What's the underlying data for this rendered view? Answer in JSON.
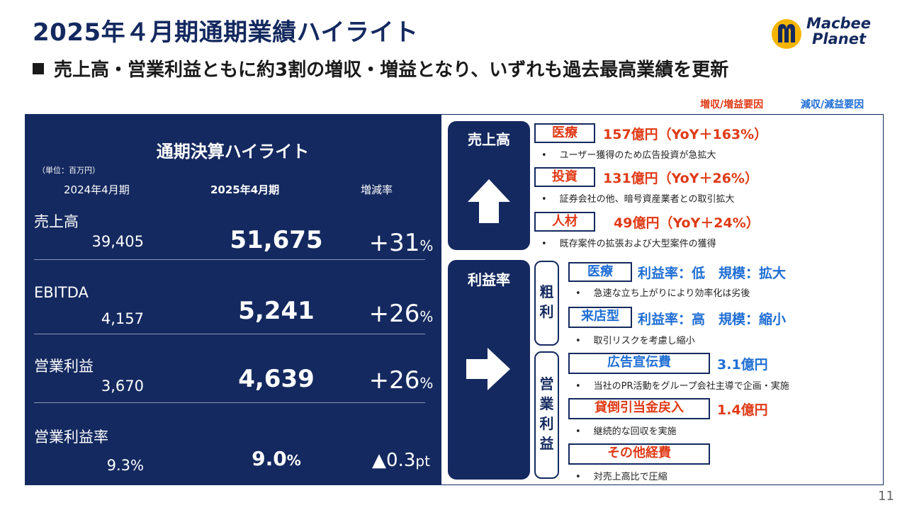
{
  "header": {
    "title": "2025年４月期通期業績ハイライト",
    "subtitle": "売上高・営業利益ともに約3割の増収・増益となり、いずれも過去最高業績を更新",
    "logo_line1": "Macbee",
    "logo_line2": "Planet"
  },
  "legend": {
    "up": "増収/増益要因",
    "down": "減収/減益要因"
  },
  "highlight": {
    "title": "通期決算ハイライト",
    "unit": "（単位：百万円）",
    "col_prev": "2024年4月期",
    "col_curr": "2025年4月期",
    "col_rate": "増減率",
    "rows": [
      {
        "label": "売上高",
        "prev": "39,405",
        "prev_unit": "",
        "curr": "51,675",
        "curr_unit": "",
        "rate": "+31",
        "rate_unit": "%"
      },
      {
        "label": "EBITDA",
        "prev": "4,157",
        "prev_unit": "",
        "curr": "5,241",
        "curr_unit": "",
        "rate": "+26",
        "rate_unit": "%"
      },
      {
        "label": "営業利益",
        "prev": "3,670",
        "prev_unit": "",
        "curr": "4,639",
        "curr_unit": "",
        "rate": "+26",
        "rate_unit": "%"
      },
      {
        "label": "営業利益率",
        "prev": "9.3",
        "prev_unit": "%",
        "curr": "9.0",
        "curr_unit": "%",
        "rate": "▲0.3",
        "rate_unit": "pt"
      }
    ]
  },
  "sales": {
    "title": "売上高",
    "items": [
      {
        "tag": "医療",
        "value": "157億円（YoY＋163%）",
        "note": "ユーザー獲得のため広告投資が急拡大"
      },
      {
        "tag": "投資",
        "value": "131億円（YoY＋26%）",
        "note": "証券会社の他、暗号資産業者との取引拡大"
      },
      {
        "tag": "人材",
        "value": "49億円（YoY＋24%）",
        "note": "既存案件の拡張および大型案件の獲得"
      }
    ]
  },
  "margin": {
    "title": "利益率",
    "gross_label": "粗利",
    "op_label": "営業利益",
    "gross": [
      {
        "tag": "医療",
        "value": "利益率：低　規模：拡大",
        "note": "急速な立ち上がりにより効率化は劣後"
      },
      {
        "tag": "来店型",
        "value": "利益率：高　規模：縮小",
        "note": "取引リスクを考慮し縮小"
      }
    ],
    "op": [
      {
        "tag": "広告宣伝費",
        "value": "3.1億円",
        "note": "当社のPR活動をグループ会社主導で企画・実施"
      },
      {
        "tag": "貸倒引当金戻入",
        "value": "1.4億円",
        "note": "継続的な回収を実施"
      },
      {
        "tag": "その他経費",
        "value": "",
        "note": "対売上高比で圧縮"
      }
    ]
  },
  "colors": {
    "navy": "#14295f",
    "red": "#e03a17",
    "blue": "#1f6ed4"
  },
  "page_number": "11"
}
